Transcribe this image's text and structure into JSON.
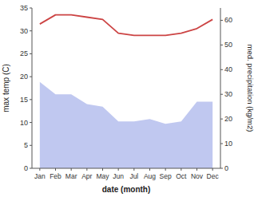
{
  "chart_data": {
    "type": "line",
    "xlabel": "date (month)",
    "ylabel": "max temp (C)",
    "y2label": "med. precipitation (kg/m2)",
    "categories": [
      "Jan",
      "Feb",
      "Mar",
      "Apr",
      "May",
      "Jun",
      "Jul",
      "Aug",
      "Sep",
      "Oct",
      "Nov",
      "Dec"
    ],
    "series": [
      {
        "type": "area",
        "axis": "y2",
        "color": "#c0c8f0",
        "values": [
          35,
          30,
          30,
          26,
          25,
          19,
          19,
          20,
          18,
          19,
          27,
          27
        ]
      },
      {
        "type": "line",
        "color": "#cc4444",
        "values": [
          31.5,
          33.5,
          33.5,
          33.0,
          32.5,
          29.5,
          29.0,
          29.0,
          29.0,
          29.5,
          30.5,
          32.5
        ]
      }
    ],
    "ylim": [
      0,
      35
    ],
    "yticks": [
      0,
      5,
      10,
      15,
      20,
      25,
      30,
      35
    ],
    "y2lim": [
      0,
      65
    ],
    "y2ticks": [
      0,
      10,
      20,
      30,
      40,
      50,
      60
    ],
    "grid": false
  }
}
